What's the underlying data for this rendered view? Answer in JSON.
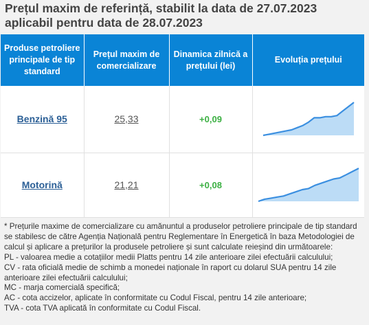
{
  "header": {
    "title_line1": "Prețul maxim de referință, stabilit la data de 27.07.2023",
    "title_line2": "aplicabil pentru data de 28.07.2023"
  },
  "table": {
    "columns": [
      "Produse petroliere principale de tip standard",
      "Prețul maxim de comercializare",
      "Dinamica zilnică a prețului (lei)",
      "Evoluția prețului"
    ],
    "rows": [
      {
        "product": "Benzină 95",
        "price": "25,33",
        "change": "+0,09",
        "trend": [
          0,
          1,
          2,
          3,
          4,
          5,
          7,
          9,
          12,
          16,
          16,
          17,
          17,
          18,
          22,
          26,
          30
        ]
      },
      {
        "product": "Motorină",
        "price": "21,21",
        "change": "+0,08",
        "trend": [
          0,
          2,
          3,
          4,
          5,
          7,
          9,
          11,
          12,
          15,
          17,
          19,
          21,
          22,
          25,
          28,
          31
        ]
      }
    ]
  },
  "colors": {
    "header_bg": "#0a84d6",
    "link": "#2b5f96",
    "positive": "#3cb043",
    "spark_line": "#3b8fe0",
    "spark_fill": "#bcdcf6"
  },
  "notes": [
    "* Prețurile maxime de comercializare cu amănuntul a produselor petroliere principale de tip standard se stabilesc de către Agenția Națională pentru Reglementare în Energetică în baza Metodologiei de calcul și aplicare a prețurilor la produsele petroliere și sunt calculate reieșind din următoarele:",
    "PL - valoarea medie a cotațiilor medii Platts pentru 14 zile anterioare zilei efectuării calculului;",
    "CV - rata oficială medie de schimb a monedei naționale în raport cu dolarul SUA pentru 14 zile anterioare zilei efectuării calculului;",
    "MC - marja comercială specifică;",
    "AC - cota accizelor, aplicate în conformitate cu Codul Fiscal, pentru 14 zile anterioare;",
    "TVA - cota TVA aplicată în conformitate cu Codul Fiscal."
  ]
}
